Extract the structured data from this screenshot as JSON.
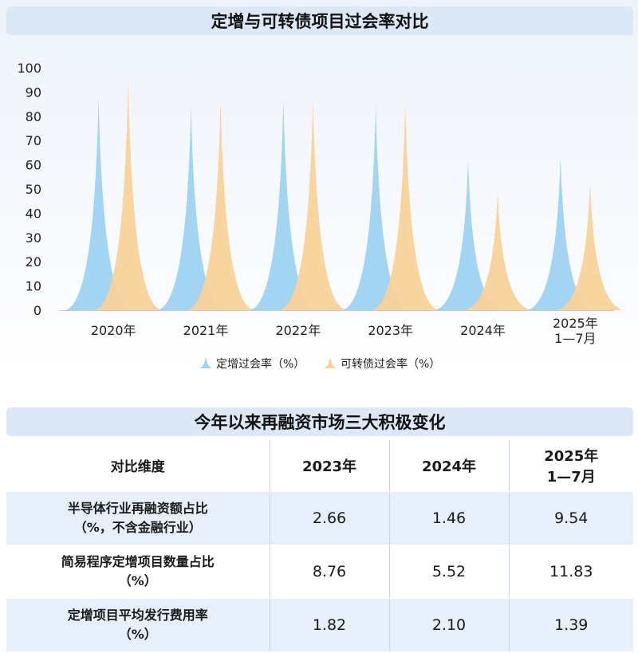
{
  "chart_title": "定增与可转债项目过会率对比",
  "chart_data": {
    "type": "area",
    "categories": [
      "2020年",
      "2021年",
      "2022年",
      "2023年",
      "2024年",
      "2025年\n1—7月"
    ],
    "series": [
      {
        "name": "定增过会率（%）",
        "values": [
          88,
          84,
          87,
          85,
          62,
          63
        ],
        "color": "#9ed3f1"
      },
      {
        "name": "可转债过会率（%）",
        "values": [
          95,
          87,
          87,
          86,
          49,
          53
        ],
        "color": "#f8d29a"
      }
    ],
    "ylim": [
      0,
      100
    ],
    "yticks": [
      0,
      10,
      20,
      30,
      40,
      50,
      60,
      70,
      80,
      90,
      100
    ],
    "xlabel": "",
    "ylabel": "",
    "legend_position": "bottom"
  },
  "table_title": "今年以来再融资市场三大积极变化",
  "table": {
    "headers": [
      "对比维度",
      "2023年",
      "2024年",
      "2025年\n1—7月"
    ],
    "rows": [
      {
        "label": [
          "半导体行业再融资额占比",
          "（%，不含金融行业）"
        ],
        "values": [
          "2.66",
          "1.46",
          "9.54"
        ]
      },
      {
        "label": [
          "简易程序定增项目数量占比",
          "（%）"
        ],
        "values": [
          "8.76",
          "5.52",
          "11.83"
        ]
      },
      {
        "label": [
          "定增项目平均发行费用率",
          "（%）"
        ],
        "values": [
          "1.82",
          "2.10",
          "1.39"
        ]
      }
    ]
  }
}
